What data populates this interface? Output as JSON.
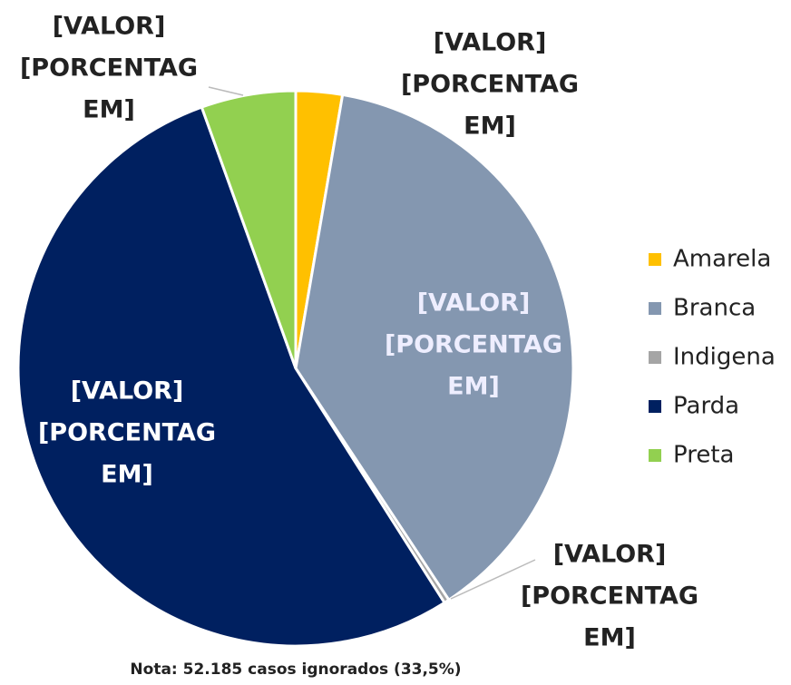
{
  "chart_data": {
    "type": "pie",
    "categories": [
      "Amarela",
      "Branca",
      "Indigena",
      "Parda",
      "Preta"
    ],
    "values": [
      2.7,
      38.0,
      0.3,
      53.5,
      5.5
    ],
    "colors": [
      "#ffc000",
      "#8497b0",
      "#a5a5a5",
      "#002060",
      "#92d050"
    ],
    "data_labels": [
      [
        "[VALOR]",
        "[PORCENTAG",
        "EM]"
      ],
      [
        "[VALOR]",
        "[PORCENTAG",
        "EM]"
      ],
      [
        "[VALOR]",
        "[PORCENTAG",
        "EM]"
      ],
      [
        "[VALOR]",
        "[PORCENTAG",
        "EM]"
      ],
      [
        "[VALOR]",
        "[PORCENTAG",
        "EM]"
      ]
    ],
    "legend": "right",
    "note": "Nota: 52.185 casos ignorados  (33,5%)"
  }
}
